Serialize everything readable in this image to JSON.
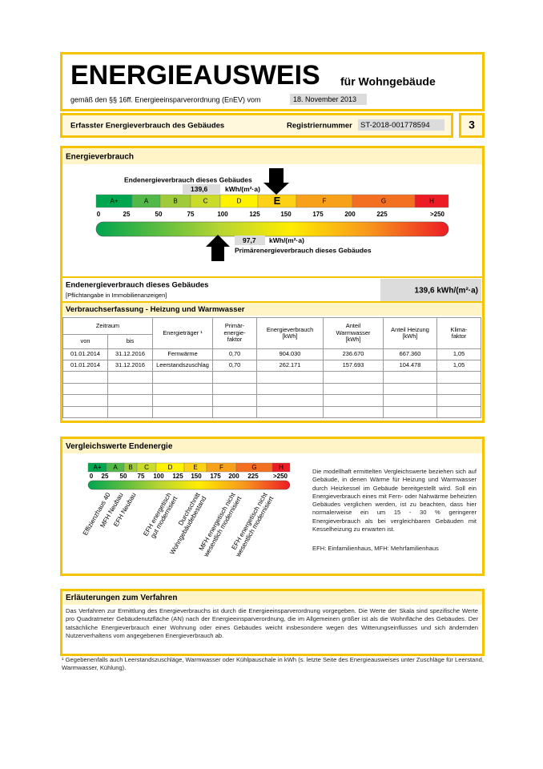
{
  "header": {
    "title": "ENERGIEAUSWEIS",
    "subtitle": "für Wohngebäude",
    "regulation": "gemäß den §§ 16ff. Energieeinsparverordnung (EnEV) vom",
    "regulation_date": "18. November 2013"
  },
  "info_bar": {
    "label": "Erfasster Energieverbrauch des Gebäudes",
    "registration_label": "Registriernummer",
    "registration_number": "ST-2018-001778594",
    "page": "3"
  },
  "consumption": {
    "heading": "Energieverbrauch",
    "final_label": "Endenergieverbrauch dieses Gebäudes",
    "final_value": "139,6",
    "unit": "kWh/(m²·a)",
    "classes": [
      "A+",
      "A",
      "B",
      "C",
      "D",
      "E",
      "F",
      "G",
      "H"
    ],
    "rating": "E",
    "scale": [
      "0",
      "25",
      "50",
      "75",
      "100",
      "125",
      "150",
      "175",
      "200",
      "225",
      ">250"
    ],
    "primary_value": "97,7",
    "primary_unit": "kWh/(m²·a)",
    "primary_label": "Primärenergieverbrauch dieses Gebäudes"
  },
  "summary": {
    "label": "Endenergieverbrauch dieses Gebäudes",
    "note": "[Pflichtangabe in Immobilienanzeigen]",
    "value": "139,6 kWh/(m²·a)"
  },
  "table": {
    "heading": "Verbrauchserfassung - Heizung und Warmwasser",
    "period": "Zeitraum",
    "columns": [
      [
        "von"
      ],
      [
        "bis"
      ],
      [
        "Energieträger ¹"
      ],
      [
        "Primär-",
        "energie-",
        "faktor"
      ],
      [
        "Energieverbrauch",
        "[kWh]"
      ],
      [
        "Anteil",
        "Warmwasser",
        "[kWh]"
      ],
      [
        "Anteil Heizung",
        "[kWh]"
      ],
      [
        "Klima-",
        "faktor"
      ]
    ],
    "rows": [
      [
        "01.01.2014",
        "31.12.2016",
        "Fernwärme",
        "0,70",
        "904.030",
        "236.670",
        "667.360",
        "1,05"
      ],
      [
        "01.01.2014",
        "31.12.2016",
        "Leerstandszuschlag",
        "0,70",
        "262.171",
        "157.693",
        "104.478",
        "1,05"
      ]
    ]
  },
  "comparison": {
    "heading": "Vergleichswerte Endenergie",
    "classes": [
      "A+",
      "A",
      "B",
      "C",
      "D",
      "E",
      "F",
      "G",
      "H"
    ],
    "scale": [
      "0",
      "25",
      "50",
      "75",
      "100",
      "125",
      "150",
      "175",
      "200",
      "225",
      ">250"
    ],
    "labels": [
      [
        "Effizienzhaus 40"
      ],
      [
        "MFH Neubau"
      ],
      [
        "EFH Neubau"
      ],
      [
        "EFH energetisch",
        "gut modernisiert"
      ],
      [
        "Durchschnitt",
        "Wohngebäudebestand"
      ],
      [
        "MFH energetisch nicht",
        "wesentlich modernisiert"
      ],
      [
        "EFH energetisch nicht",
        "wesentlich modernisiert"
      ]
    ],
    "text": "Die modellhaft ermittelten Vergleichswerte beziehen sich auf Gebäude, in denen Wärme für Heizung und Warmwasser durch Heizkessel im Gebäude bereitgestellt wird. Soll ein Energieverbrauch eines mit Fern- oder Nahwärme beheizten Gebäudes verglichen werden, ist zu beachten, dass hier normalerweise ein um 15 - 30 % geringerer Energieverbrauch als bei vergleichbaren Gebäuden mit Kesselheizung zu erwarten ist.",
    "abbreviations": "EFH: Einfamilienhaus, MFH: Mehrfamilienhaus"
  },
  "explanation": {
    "heading": "Erläuterungen zum Verfahren",
    "text": "Das Verfahren zur Ermittlung des Energieverbrauchs ist durch die Energieeinsparverordnung vorgegeben. Die Werte der Skala sind spezifische Werte pro Quadratmeter Gebäudenutzfläche (AN) nach der Energieeinsparverordnung, die im Allgemeinen größer ist als die Wohnfläche des Gebäudes. Der tatsächliche Energieverbrauch einer Wohnung oder eines Gebäudes weicht insbesondere wegen des Witterungseinflusses und sich ändernden Nutzerverhaltens vom angegebenen Energieverbrauch ab."
  },
  "footnote": "¹ Gegebenenfalls auch Leerstandszuschläge, Warmwasser oder Kühlpauschale in kWh (s. letzte Seite des Energieausweises unter Zuschläge für Leerstand, Warmwasser, Kühlung)."
}
